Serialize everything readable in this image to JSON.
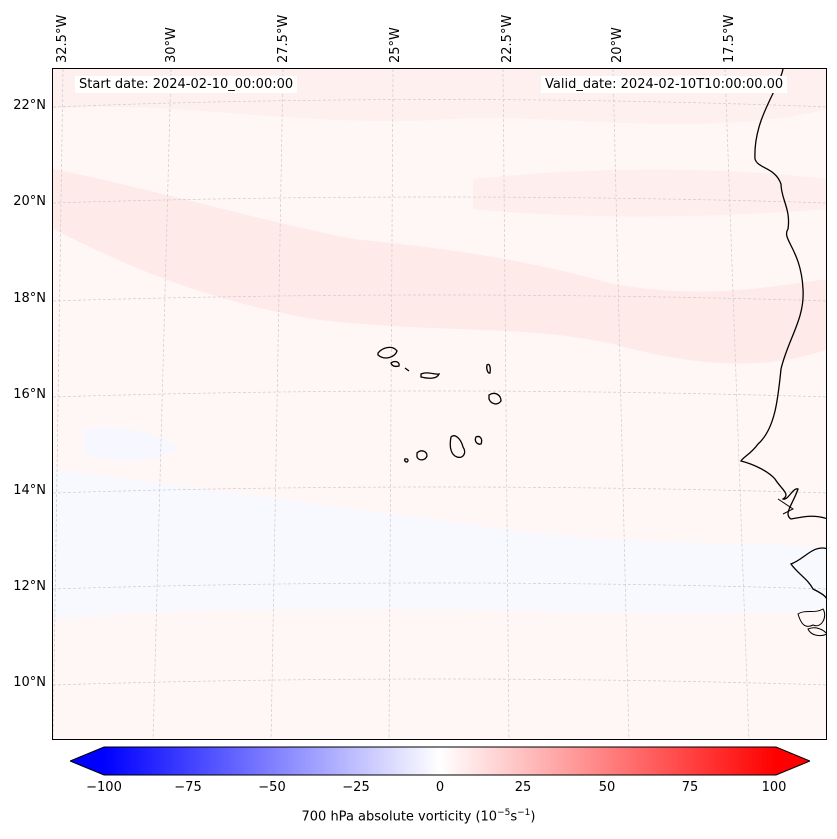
{
  "map": {
    "start_date": "Start date: 2024-02-10_00:00:00",
    "valid_date": "Valid_date: 2024-02-10T10:00:00.00",
    "lon_labels": [
      "32.5°W",
      "30°W",
      "27.5°W",
      "25°W",
      "22.5°W",
      "20°W",
      "17.5°W"
    ],
    "lat_labels": [
      "22°N",
      "20°N",
      "18°N",
      "16°N",
      "14°N",
      "12°N",
      "10°N"
    ],
    "field": "700 hPa absolute vorticity",
    "region": "Cape Verde / West African coast"
  },
  "colorbar": {
    "ticks": [
      "−100",
      "−75",
      "−50",
      "−25",
      "0",
      "25",
      "50",
      "75",
      "100"
    ],
    "label_prefix": "700 hPa absolute vorticity (10",
    "label_exp1": "−5",
    "label_mid": "s",
    "label_exp2": "−1",
    "label_suffix": ")",
    "min_color": "#0000ff",
    "max_color": "#ff0000"
  }
}
